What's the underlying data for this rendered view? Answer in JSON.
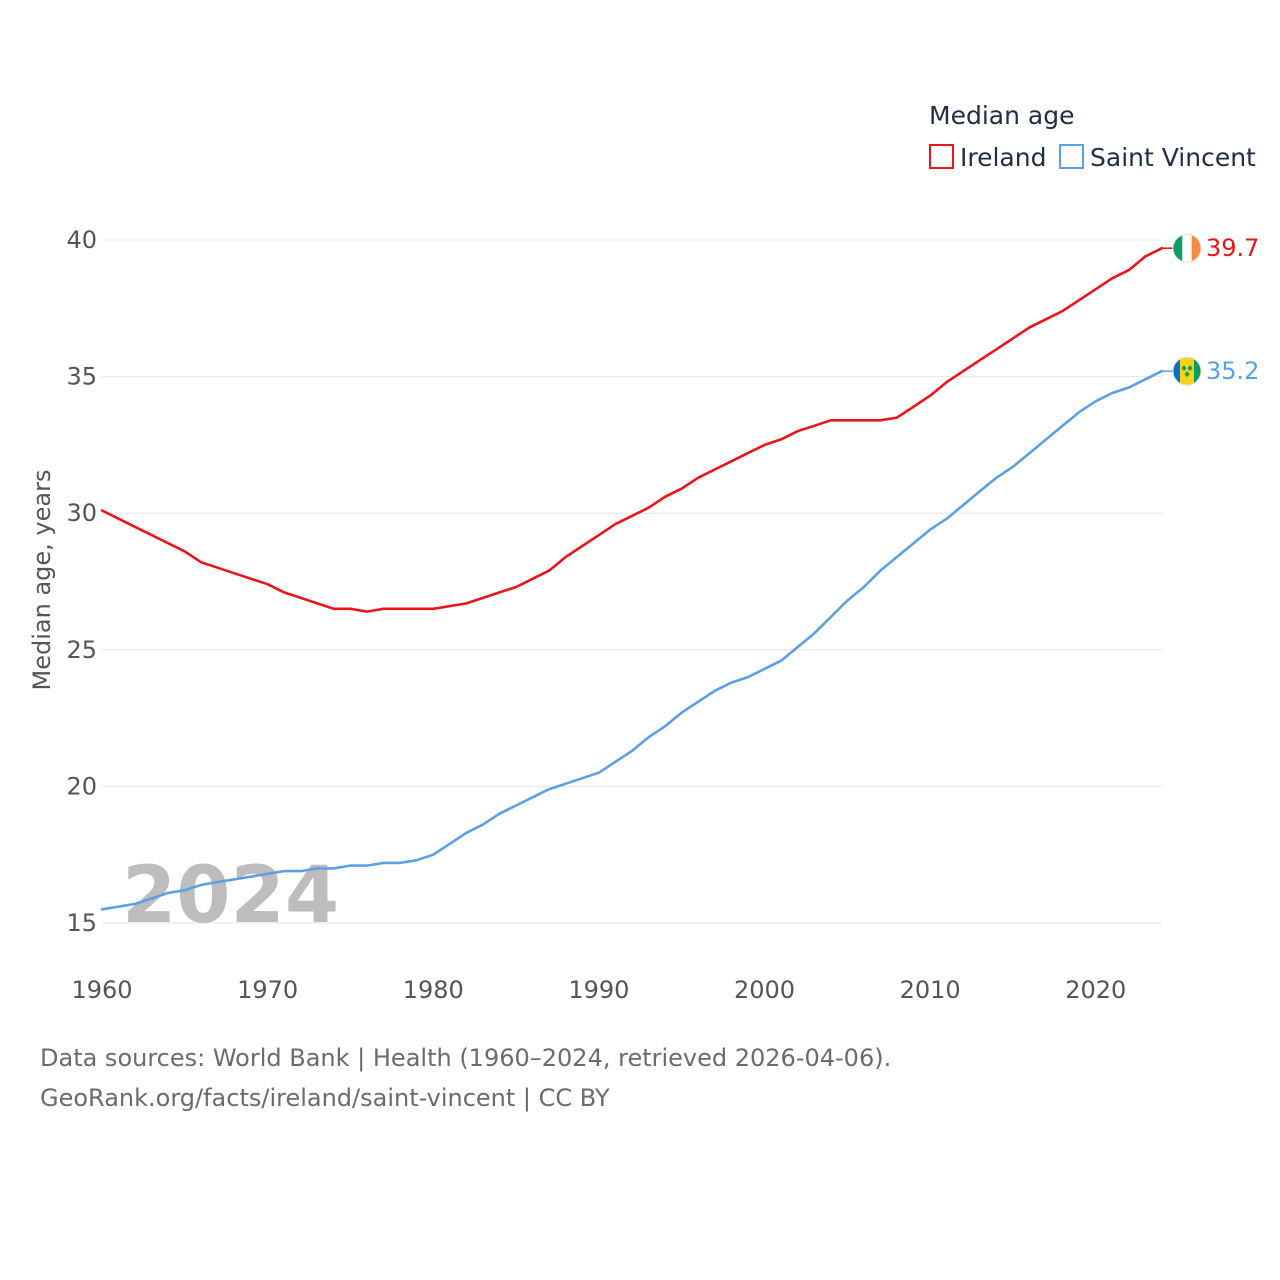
{
  "chart_data": {
    "type": "line",
    "legend": {
      "title": "Median age",
      "placement": "top-right"
    },
    "ylabel": "Median age, years",
    "xlabel": "",
    "xlim": [
      1960,
      2024
    ],
    "ylim": [
      15,
      41
    ],
    "x_ticks": [
      "1960",
      "1970",
      "1980",
      "1990",
      "2000",
      "2010",
      "2020"
    ],
    "y_ticks": [
      "15",
      "20",
      "25",
      "30",
      "35",
      "40"
    ],
    "grid": true,
    "year_watermark": "2024",
    "series": [
      {
        "name": "Ireland",
        "color": "#e8151b",
        "end_label": "39.7",
        "flag_icon": "ireland-flag-icon",
        "x": [
          1960,
          1961,
          1962,
          1963,
          1964,
          1965,
          1966,
          1967,
          1968,
          1969,
          1970,
          1971,
          1972,
          1973,
          1974,
          1975,
          1976,
          1977,
          1978,
          1979,
          1980,
          1981,
          1982,
          1983,
          1984,
          1985,
          1986,
          1987,
          1988,
          1989,
          1990,
          1991,
          1992,
          1993,
          1994,
          1995,
          1996,
          1997,
          1998,
          1999,
          2000,
          2001,
          2002,
          2003,
          2004,
          2005,
          2006,
          2007,
          2008,
          2009,
          2010,
          2011,
          2012,
          2013,
          2014,
          2015,
          2016,
          2017,
          2018,
          2019,
          2020,
          2021,
          2022,
          2023,
          2024
        ],
        "values": [
          30.1,
          29.8,
          29.5,
          29.2,
          28.9,
          28.6,
          28.2,
          28.0,
          27.8,
          27.6,
          27.4,
          27.1,
          26.9,
          26.7,
          26.5,
          26.5,
          26.4,
          26.5,
          26.5,
          26.5,
          26.5,
          26.6,
          26.7,
          26.9,
          27.1,
          27.3,
          27.6,
          27.9,
          28.4,
          28.8,
          29.2,
          29.6,
          29.9,
          30.2,
          30.6,
          30.9,
          31.3,
          31.6,
          31.9,
          32.2,
          32.5,
          32.7,
          33.0,
          33.2,
          33.4,
          33.4,
          33.4,
          33.4,
          33.5,
          33.9,
          34.3,
          34.8,
          35.2,
          35.6,
          36.0,
          36.4,
          36.8,
          37.1,
          37.4,
          37.8,
          38.2,
          38.6,
          38.9,
          39.4,
          39.7
        ]
      },
      {
        "name": "Saint Vincent",
        "color": "#5aa0e3",
        "end_label": "35.2",
        "flag_icon": "saint-vincent-flag-icon",
        "x": [
          1960,
          1961,
          1962,
          1963,
          1964,
          1965,
          1966,
          1967,
          1968,
          1969,
          1970,
          1971,
          1972,
          1973,
          1974,
          1975,
          1976,
          1977,
          1978,
          1979,
          1980,
          1981,
          1982,
          1983,
          1984,
          1985,
          1986,
          1987,
          1988,
          1989,
          1990,
          1991,
          1992,
          1993,
          1994,
          1995,
          1996,
          1997,
          1998,
          1999,
          2000,
          2001,
          2002,
          2003,
          2004,
          2005,
          2006,
          2007,
          2008,
          2009,
          2010,
          2011,
          2012,
          2013,
          2014,
          2015,
          2016,
          2017,
          2018,
          2019,
          2020,
          2021,
          2022,
          2023,
          2024
        ],
        "values": [
          15.5,
          15.6,
          15.7,
          15.9,
          16.1,
          16.2,
          16.4,
          16.5,
          16.6,
          16.7,
          16.8,
          16.9,
          16.9,
          17.0,
          17.0,
          17.1,
          17.1,
          17.2,
          17.2,
          17.3,
          17.5,
          17.9,
          18.3,
          18.6,
          19.0,
          19.3,
          19.6,
          19.9,
          20.1,
          20.3,
          20.5,
          20.9,
          21.3,
          21.8,
          22.2,
          22.7,
          23.1,
          23.5,
          23.8,
          24.0,
          24.3,
          24.6,
          25.1,
          25.6,
          26.2,
          26.8,
          27.3,
          27.9,
          28.4,
          28.9,
          29.4,
          29.8,
          30.3,
          30.8,
          31.3,
          31.7,
          32.2,
          32.7,
          33.2,
          33.7,
          34.1,
          34.4,
          34.6,
          34.9,
          35.2
        ]
      }
    ]
  },
  "footer": {
    "sources": "Data sources: World Bank | Health (1960–2024, retrieved 2026-04-06).",
    "credit": "GeoRank.org/facts/ireland/saint-vincent | CC BY"
  }
}
